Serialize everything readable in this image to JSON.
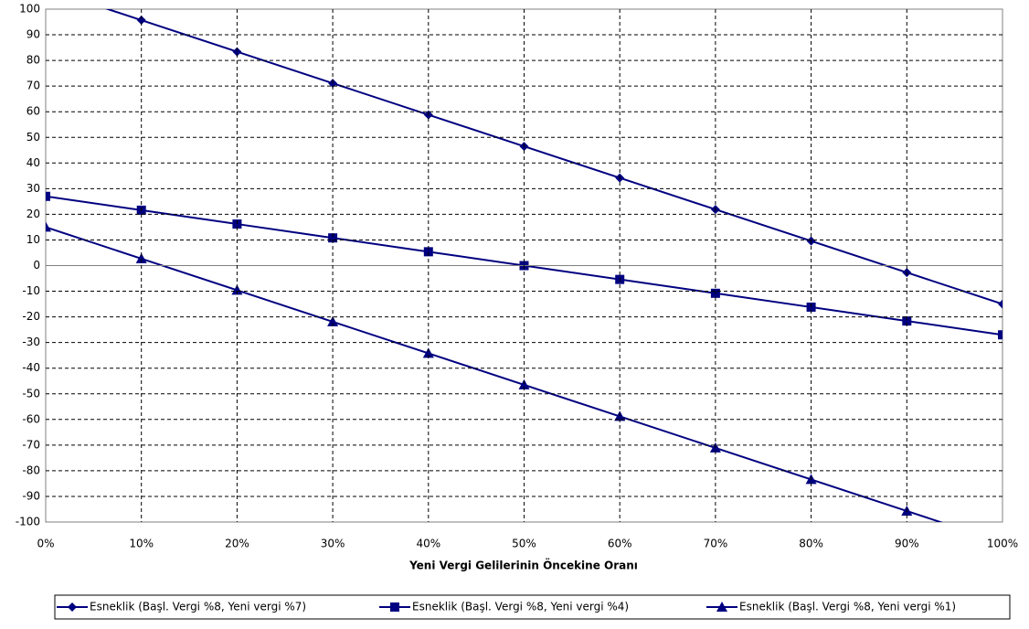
{
  "chart_data": {
    "type": "line",
    "x_label": "Yeni Vergi Gelilerinin Öncekine Oranı",
    "categories": [
      "0%",
      "10%",
      "20%",
      "30%",
      "40%",
      "50%",
      "60%",
      "70%",
      "80%",
      "90%",
      "100%"
    ],
    "series": [
      {
        "name": "Esneklik (Başl. Vergi %8, Yeni vergi %7)",
        "color": "#000080",
        "marker": "diamond",
        "values": [
          108,
          95.7,
          83.4,
          71.1,
          58.8,
          46.5,
          34.2,
          21.9,
          9.6,
          -2.7,
          -15
        ]
      },
      {
        "name": "Esneklik (Başl. Vergi %8, Yeni vergi %4)",
        "color": "#000080",
        "marker": "square",
        "values": [
          27,
          21.6,
          16.2,
          10.8,
          5.4,
          0,
          -5.4,
          -10.8,
          -16.2,
          -21.6,
          -27
        ]
      },
      {
        "name": "Esneklik (Başl. Vergi %8, Yeni vergi %1)",
        "color": "#000080",
        "marker": "triangle",
        "values": [
          15,
          2.7,
          -9.6,
          -21.9,
          -34.2,
          -46.5,
          -58.8,
          -71.1,
          -83.4,
          -95.7,
          -108
        ]
      }
    ],
    "ylim": [
      -100,
      100
    ],
    "yticks": [
      -100,
      -90,
      -80,
      -70,
      -60,
      -50,
      -40,
      -30,
      -20,
      -10,
      0,
      10,
      20,
      30,
      40,
      50,
      60,
      70,
      80,
      90,
      100
    ],
    "grid": true
  }
}
